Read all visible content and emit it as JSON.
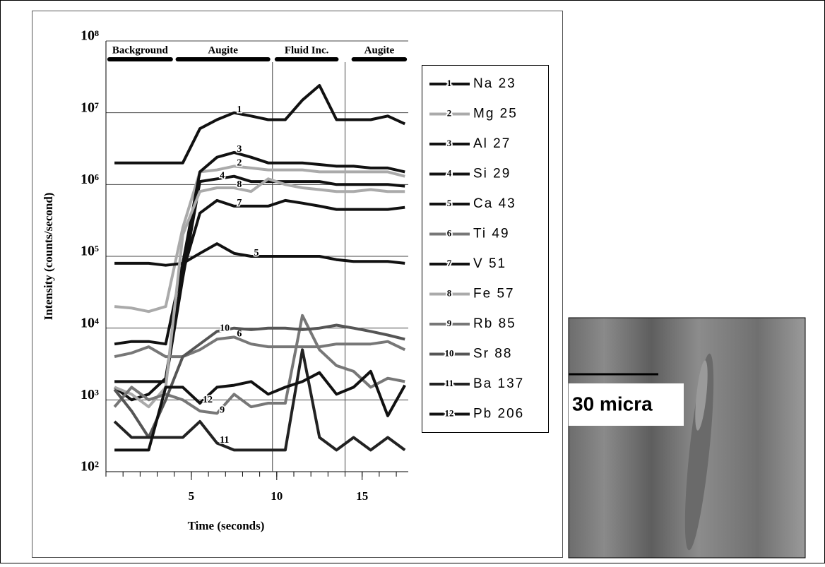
{
  "chart_data": {
    "type": "line",
    "log_y": true,
    "x_label": "Time (seconds)",
    "y_label": "Intensity (counts/second)",
    "xlim": [
      0,
      17.7
    ],
    "xticks": [
      5,
      10,
      15
    ],
    "ylim": [
      100,
      100000000
    ],
    "yticks": [
      {
        "value": 100,
        "label": "10²"
      },
      {
        "value": 1000,
        "label": "10³"
      },
      {
        "value": 10000,
        "label": "10⁴"
      },
      {
        "value": 100000,
        "label": "10⁵"
      },
      {
        "value": 1000000,
        "label": "10⁶"
      },
      {
        "value": 10000000,
        "label": "10⁷"
      },
      {
        "value": 100000000,
        "label": "10⁸"
      }
    ],
    "grid": true,
    "phases": [
      {
        "label": "Background",
        "start": 0.2,
        "end": 3.8
      },
      {
        "label": "Augite",
        "start": 4.2,
        "end": 9.5
      },
      {
        "label": "Fluid Inc.",
        "start": 10,
        "end": 13.5
      },
      {
        "label": "Augite",
        "start": 14.5,
        "end": 17.5
      }
    ],
    "x": [
      0.5,
      1.5,
      2.5,
      3.5,
      4.5,
      5.5,
      6.5,
      7.5,
      8.5,
      9.5,
      10.5,
      11.5,
      12.5,
      13.5,
      14.5,
      15.5,
      16.5,
      17.5
    ],
    "series": [
      {
        "label": "1",
        "name": "Na 23",
        "color": "#111111",
        "values": [
          2000000,
          2000000,
          2000000,
          2000000,
          2000000,
          6000000,
          8000000,
          10000000,
          9000000,
          8000000,
          8000000,
          15000000,
          24000000,
          8000000,
          8000000,
          8000000,
          9000000,
          7000000
        ]
      },
      {
        "label": "2",
        "name": "Mg 25",
        "color": "#aaaaaa",
        "values": [
          20000,
          19000,
          17000,
          20000,
          250000,
          1500000,
          1600000,
          1800000,
          1700000,
          1600000,
          1600000,
          1600000,
          1500000,
          1500000,
          1500000,
          1500000,
          1500000,
          1300000
        ]
      },
      {
        "label": "3",
        "name": "Al 27",
        "color": "#111111",
        "values": [
          6000,
          6500,
          6500,
          6000,
          80000,
          1500000,
          2400000,
          2800000,
          2400000,
          2000000,
          2000000,
          2000000,
          1900000,
          1800000,
          1800000,
          1700000,
          1700000,
          1500000
        ]
      },
      {
        "label": "4",
        "name": "Si 29",
        "color": "#111111",
        "values": [
          1800,
          1800,
          1800,
          1800,
          50000,
          1100000,
          1200000,
          1300000,
          1100000,
          1100000,
          1100000,
          1100000,
          1100000,
          1000000,
          1000000,
          1000000,
          1000000,
          950000
        ]
      },
      {
        "label": "5",
        "name": "Ca 43",
        "color": "#111111",
        "values": [
          80000,
          80000,
          80000,
          75000,
          80000,
          110000,
          150000,
          110000,
          100000,
          100000,
          100000,
          100000,
          100000,
          90000,
          85000,
          85000,
          85000,
          80000
        ]
      },
      {
        "label": "6",
        "name": "Ti 49",
        "color": "#777777",
        "values": [
          4000,
          4500,
          5500,
          4000,
          4000,
          5000,
          7000,
          7500,
          6000,
          5500,
          5500,
          5500,
          5500,
          6000,
          6000,
          6000,
          6500,
          5000
        ]
      },
      {
        "label": "7",
        "name": "V 51",
        "color": "#111111",
        "values": [
          1500,
          1000,
          1200,
          2000,
          60000,
          400000,
          600000,
          500000,
          500000,
          500000,
          600000,
          550000,
          500000,
          450000,
          450000,
          450000,
          450000,
          480000
        ]
      },
      {
        "label": "8",
        "name": "Fe 57",
        "color": "#aaaaaa",
        "values": [
          1500,
          1200,
          800,
          1500,
          200000,
          800000,
          900000,
          900000,
          800000,
          1200000,
          1000000,
          900000,
          850000,
          800000,
          800000,
          850000,
          800000,
          800000
        ]
      },
      {
        "label": "9",
        "name": "Rb 85",
        "color": "#777777",
        "values": [
          800,
          1500,
          1000,
          1200,
          1000,
          700,
          650,
          1200,
          800,
          900,
          900,
          15000,
          5000,
          3000,
          2500,
          1500,
          2000,
          1800
        ]
      },
      {
        "label": "10",
        "name": "Sr 88",
        "color": "#555555",
        "values": [
          1400,
          700,
          300,
          1000,
          4000,
          6000,
          9000,
          10000,
          9500,
          10000,
          10000,
          9500,
          10000,
          11000,
          10000,
          9000,
          8000,
          7000
        ]
      },
      {
        "label": "11",
        "name": "Ba 137",
        "color": "#222222",
        "values": [
          500,
          300,
          300,
          300,
          300,
          500,
          250,
          200,
          200,
          200,
          200,
          5000,
          300,
          200,
          300,
          200,
          300,
          200
        ]
      },
      {
        "label": "12",
        "name": "Pb 206",
        "color": "#111111",
        "values": [
          200,
          200,
          200,
          1500,
          1500,
          900,
          1500,
          1600,
          1800,
          1200,
          1500,
          1800,
          2400,
          1200,
          1500,
          2500,
          600,
          1600
        ]
      }
    ]
  },
  "photo": {
    "scale_label": "30 micra"
  }
}
